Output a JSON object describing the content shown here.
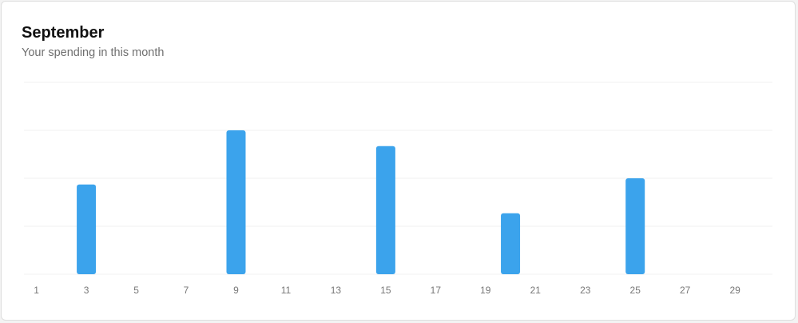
{
  "header": {
    "title": "September",
    "subtitle": "Your spending in this month"
  },
  "colors": {
    "bar": "#3ba3ec",
    "grid": "#f0f0f0",
    "tick_label": "#777777"
  },
  "chart_data": {
    "type": "bar",
    "title": "September",
    "subtitle": "Your spending in this month",
    "xlabel": "",
    "ylabel": "",
    "categories": [
      1,
      2,
      3,
      4,
      5,
      6,
      7,
      8,
      9,
      10,
      11,
      12,
      13,
      14,
      15,
      16,
      17,
      18,
      19,
      20,
      21,
      22,
      23,
      24,
      25,
      26,
      27,
      28,
      29,
      30
    ],
    "x_tick_labels": [
      "1",
      "3",
      "5",
      "7",
      "9",
      "11",
      "13",
      "15",
      "17",
      "19",
      "21",
      "23",
      "25",
      "27",
      "29"
    ],
    "values": [
      0,
      0,
      1.87,
      0,
      0,
      0,
      0,
      0,
      3.0,
      0,
      0,
      0,
      0,
      0,
      2.67,
      0,
      0,
      0,
      0,
      1.27,
      0,
      0,
      0,
      0,
      2.0,
      0,
      0,
      0,
      0,
      0
    ],
    "ylim": [
      0,
      4
    ],
    "y_gridlines": [
      0,
      1,
      2,
      3,
      4
    ],
    "grid": true,
    "y_axis_labels_shown": false,
    "legend": "none"
  }
}
